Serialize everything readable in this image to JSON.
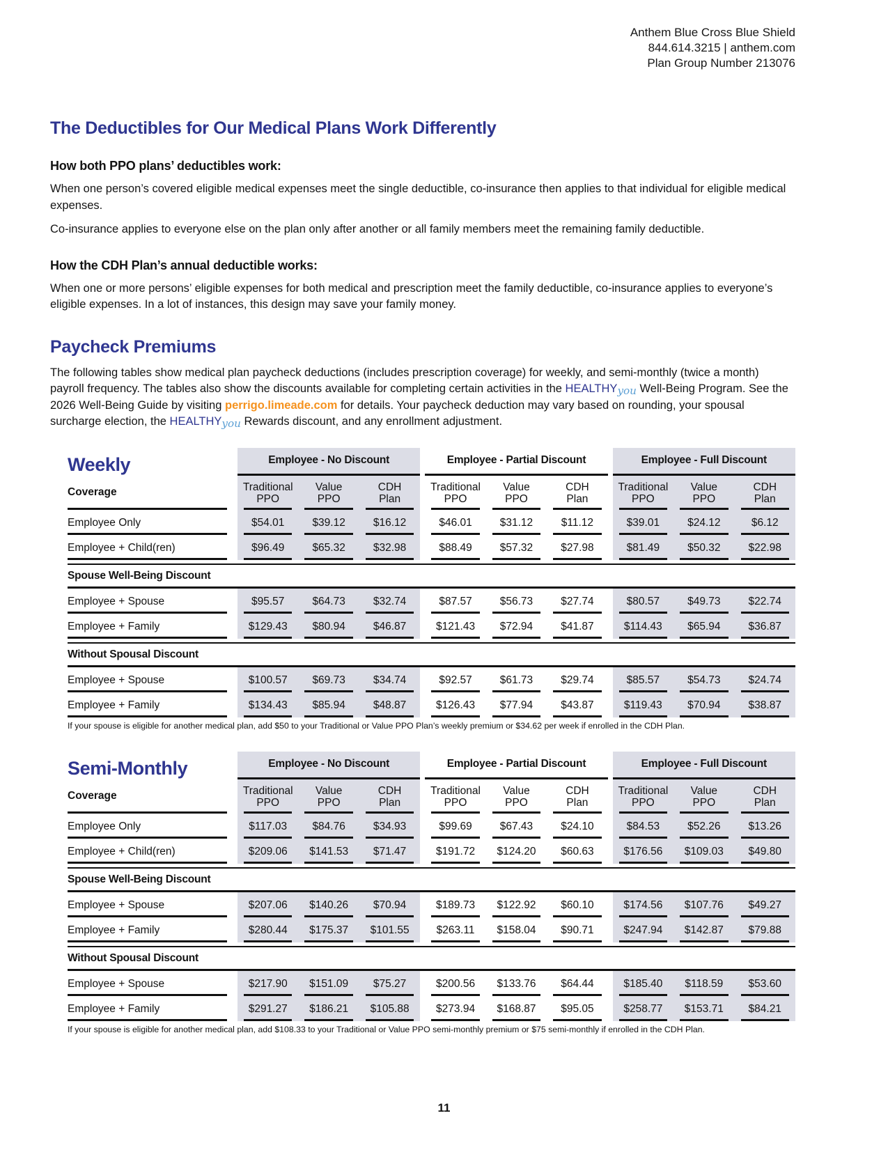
{
  "page_header": {
    "company": "Anthem Blue Cross Blue Shield",
    "contact": "844.614.3215 | anthem.com",
    "plan_group": "Plan Group Number 213076"
  },
  "deductibles_section": {
    "title": "The Deductibles for Our Medical Plans Work Differently",
    "ppo_heading": "How both PPO plans’ deductibles work:",
    "ppo_paragraph_1": "When one person’s covered eligible medical expenses meet the single deductible, co-insurance then applies to that individual for eligible medical expenses.",
    "ppo_paragraph_2": "Co-insurance applies to everyone else on the plan only after another or all family members meet the remaining family deductible.",
    "cdh_heading": "How the CDH Plan’s annual deductible works:",
    "cdh_paragraph": "When one or more persons’ eligible expenses for both medical and prescription meet the family deductible, co-insurance applies to everyone’s eligible expenses. In a lot of instances, this design may save your family money."
  },
  "premiums_section": {
    "title": "Paycheck Premiums",
    "intro": {
      "part_1": "The following tables show medical plan paycheck deductions (includes prescription coverage) for weekly, and semi-monthly (twice a month) payroll frequency. The tables also show the discounts available for completing certain activities in the ",
      "brand_1": "HEALTHY",
      "brand_script_1": "you",
      "part_2": " Well-Being Program. See the 2026 Well-Being Guide by visiting ",
      "link": "perrigo.limeade.com",
      "part_3": " for details. Your paycheck deduction may vary based on rounding, your spousal surcharge election, the ",
      "brand_2": "HEALTHY",
      "brand_script_2": "you",
      "part_4": " Rewards discount, and any enrollment adjustment."
    }
  },
  "tables": [
    {
      "id": "weekly",
      "title": "Weekly",
      "coverage_label": "Coverage",
      "group_headers": [
        "Employee - No Discount",
        "Employee - Partial Discount",
        "Employee - Full Discount"
      ],
      "plan_headers": [
        "Traditional\nPPO",
        "Value\nPPO",
        "CDH\nPlan"
      ],
      "rows": [
        {
          "type": "data",
          "label": "Employee Only",
          "values": [
            "$54.01",
            "$39.12",
            "$16.12",
            "$46.01",
            "$31.12",
            "$11.12",
            "$39.01",
            "$24.12",
            "$6.12"
          ]
        },
        {
          "type": "data",
          "label": "Employee + Child(ren)",
          "values": [
            "$96.49",
            "$65.32",
            "$32.98",
            "$88.49",
            "$57.32",
            "$27.98",
            "$81.49",
            "$50.32",
            "$22.98"
          ]
        },
        {
          "type": "section",
          "label": "Spouse Well-Being Discount"
        },
        {
          "type": "data",
          "label": "Employee + Spouse",
          "values": [
            "$95.57",
            "$64.73",
            "$32.74",
            "$87.57",
            "$56.73",
            "$27.74",
            "$80.57",
            "$49.73",
            "$22.74"
          ]
        },
        {
          "type": "data",
          "label": "Employee + Family",
          "values": [
            "$129.43",
            "$80.94",
            "$46.87",
            "$121.43",
            "$72.94",
            "$41.87",
            "$114.43",
            "$65.94",
            "$36.87"
          ]
        },
        {
          "type": "section",
          "label": "Without Spousal Discount"
        },
        {
          "type": "data",
          "label": "Employee + Spouse",
          "values": [
            "$100.57",
            "$69.73",
            "$34.74",
            "$92.57",
            "$61.73",
            "$29.74",
            "$85.57",
            "$54.73",
            "$24.74"
          ]
        },
        {
          "type": "data",
          "label": "Employee + Family",
          "values": [
            "$134.43",
            "$85.94",
            "$48.87",
            "$126.43",
            "$77.94",
            "$43.87",
            "$119.43",
            "$70.94",
            "$38.87"
          ]
        }
      ],
      "footnote": "If your spouse is eligible for another medical plan, add $50 to your Traditional or Value PPO Plan’s weekly premium or $34.62 per week if enrolled in the CDH Plan."
    },
    {
      "id": "semi_monthly",
      "title": "Semi-Monthly",
      "coverage_label": "Coverage",
      "group_headers": [
        "Employee - No Discount",
        "Employee - Partial Discount",
        "Employee - Full Discount"
      ],
      "plan_headers": [
        "Traditional\nPPO",
        "Value\nPPO",
        "CDH\nPlan"
      ],
      "rows": [
        {
          "type": "data",
          "label": "Employee Only",
          "values": [
            "$117.03",
            "$84.76",
            "$34.93",
            "$99.69",
            "$67.43",
            "$24.10",
            "$84.53",
            "$52.26",
            "$13.26"
          ]
        },
        {
          "type": "data",
          "label": "Employee + Child(ren)",
          "values": [
            "$209.06",
            "$141.53",
            "$71.47",
            "$191.72",
            "$124.20",
            "$60.63",
            "$176.56",
            "$109.03",
            "$49.80"
          ]
        },
        {
          "type": "section",
          "label": "Spouse Well-Being Discount"
        },
        {
          "type": "data",
          "label": "Employee + Spouse",
          "values": [
            "$207.06",
            "$140.26",
            "$70.94",
            "$189.73",
            "$122.92",
            "$60.10",
            "$174.56",
            "$107.76",
            "$49.27"
          ]
        },
        {
          "type": "data",
          "label": "Employee + Family",
          "values": [
            "$280.44",
            "$175.37",
            "$101.55",
            "$263.11",
            "$158.04",
            "$90.71",
            "$247.94",
            "$142.87",
            "$79.88"
          ]
        },
        {
          "type": "section",
          "label": "Without Spousal Discount"
        },
        {
          "type": "data",
          "label": "Employee + Spouse",
          "values": [
            "$217.90",
            "$151.09",
            "$75.27",
            "$200.56",
            "$133.76",
            "$64.44",
            "$185.40",
            "$118.59",
            "$53.60"
          ]
        },
        {
          "type": "data",
          "label": "Employee + Family",
          "values": [
            "$291.27",
            "$186.21",
            "$105.88",
            "$273.94",
            "$168.87",
            "$95.05",
            "$258.77",
            "$153.71",
            "$84.21"
          ]
        }
      ],
      "footnote": "If your spouse is eligible for another medical plan, add $108.33 to your Traditional or Value PPO semi-monthly premium or $75 semi-monthly if enrolled in the CDH Plan."
    }
  ],
  "page_number": "11",
  "colors": {
    "heading_blue": "#2f3690",
    "brand_script_blue": "#5b9fd4",
    "link_orange": "#f5921e",
    "table_shade": "#dcdde6"
  }
}
